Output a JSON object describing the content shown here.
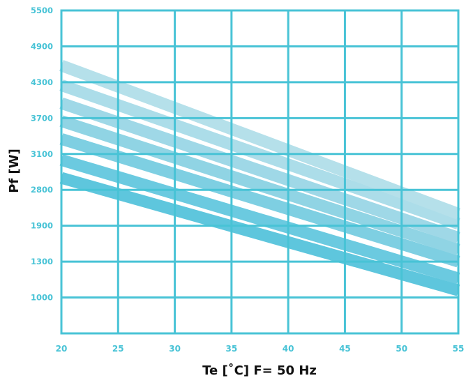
{
  "chart_data": {
    "type": "line",
    "xlabel": "Te [˚C] F= 50 Hz",
    "ylabel": "Pf [W]",
    "xlim": [
      20,
      55
    ],
    "x_ticks": [
      "20",
      "25",
      "30",
      "35",
      "40",
      "45",
      "50",
      "55"
    ],
    "y_ticks": [
      "1000",
      "1300",
      "1900",
      "2800",
      "3100",
      "3700",
      "4300",
      "4900",
      "5500"
    ],
    "grid": true,
    "legend": "none",
    "colors": {
      "grid": "#48c3d6",
      "tick_label": "#48c3d6",
      "axis_title": "#111111",
      "series": [
        "#5ec6dd",
        "#6bcae0",
        "#7ecfe2",
        "#90d4e4",
        "#9fd8e7",
        "#acdde9",
        "#b5e0ea"
      ]
    },
    "series": [
      {
        "x": [
          20,
          55
        ],
        "y": [
          2900,
          1060
        ]
      },
      {
        "x": [
          20,
          55
        ],
        "y": [
          3050,
          1160
        ]
      },
      {
        "x": [
          20,
          55
        ],
        "y": [
          3350,
          1300
        ]
      },
      {
        "x": [
          20,
          55
        ],
        "y": [
          3650,
          1500
        ]
      },
      {
        "x": [
          20,
          55
        ],
        "y": [
          3950,
          1700
        ]
      },
      {
        "x": [
          20,
          55
        ],
        "y": [
          4250,
          1950
        ]
      },
      {
        "x": [
          20,
          55
        ],
        "y": [
          4580,
          2200
        ]
      }
    ]
  }
}
